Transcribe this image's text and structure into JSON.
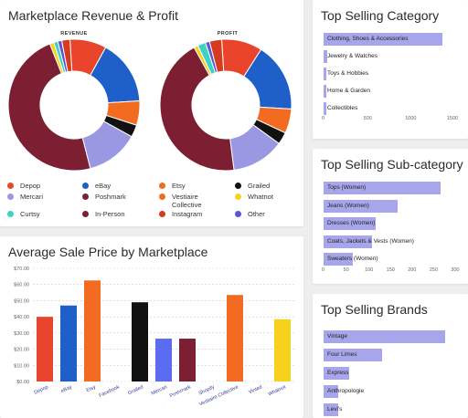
{
  "revenue_profit": {
    "title": "Marketplace Revenue & Profit",
    "revenue_label": "REVENUE",
    "profit_label": "PROFIT",
    "legend": [
      {
        "label": "Depop",
        "color": "#e8452c"
      },
      {
        "label": "eBay",
        "color": "#1f5fc9"
      },
      {
        "label": "Etsy",
        "color": "#f26b21"
      },
      {
        "label": "Grailed",
        "color": "#111111"
      },
      {
        "label": "Mercari",
        "color": "#9a98e3"
      },
      {
        "label": "Poshmark",
        "color": "#7d1f33"
      },
      {
        "label": "Vestiaire Collective",
        "color": "#f26b21"
      },
      {
        "label": "Whatnot",
        "color": "#f7d21c"
      },
      {
        "label": "Curtsy",
        "color": "#3fd1c1"
      },
      {
        "label": "In-Person",
        "color": "#7d1f33"
      },
      {
        "label": "Instagram",
        "color": "#d63a1f"
      },
      {
        "label": "Other",
        "color": "#5b55d6"
      }
    ],
    "revenue_slices": [
      {
        "name": "Depop",
        "value": 9,
        "color": "#e8452c"
      },
      {
        "name": "eBay",
        "value": 16,
        "color": "#1f5fc9"
      },
      {
        "name": "Etsy",
        "value": 6,
        "color": "#f26b21"
      },
      {
        "name": "Grailed",
        "value": 3,
        "color": "#111111"
      },
      {
        "name": "Mercari",
        "value": 13,
        "color": "#9a98e3"
      },
      {
        "name": "Poshmark",
        "value": 48,
        "color": "#7d1f33"
      },
      {
        "name": "Whatnot",
        "value": 1,
        "color": "#f7d21c"
      },
      {
        "name": "Curtsy",
        "value": 1,
        "color": "#3fd1c1"
      },
      {
        "name": "Other",
        "value": 1,
        "color": "#5b55d6"
      },
      {
        "name": "Instagram",
        "value": 2,
        "color": "#d63a1f"
      }
    ],
    "profit_slices": [
      {
        "name": "Depop",
        "value": 10,
        "color": "#e8452c"
      },
      {
        "name": "eBay",
        "value": 17,
        "color": "#1f5fc9"
      },
      {
        "name": "Etsy",
        "value": 6,
        "color": "#f26b21"
      },
      {
        "name": "Grailed",
        "value": 3,
        "color": "#111111"
      },
      {
        "name": "Mercari",
        "value": 13,
        "color": "#9a98e3"
      },
      {
        "name": "Poshmark",
        "value": 44,
        "color": "#7d1f33"
      },
      {
        "name": "Whatnot",
        "value": 1,
        "color": "#f7d21c"
      },
      {
        "name": "Curtsy",
        "value": 2,
        "color": "#3fd1c1"
      },
      {
        "name": "Other",
        "value": 1,
        "color": "#5b55d6"
      },
      {
        "name": "Instagram",
        "value": 3,
        "color": "#d63a1f"
      }
    ]
  },
  "avg_price": {
    "title": "Average Sale Price by Marketplace"
  },
  "chart_data": [
    {
      "type": "bar",
      "title": "Average Sale Price by Marketplace",
      "categories": [
        "Depop",
        "eBay",
        "Etsy",
        "Facebook",
        "Grailed",
        "Mercari",
        "Poshmark",
        "Shopify",
        "Vestiaire Collective",
        "Vinted",
        "Whatnot"
      ],
      "values": [
        40,
        47,
        62.5,
        0,
        49,
        26.5,
        26.5,
        0,
        53.5,
        0,
        38.5
      ],
      "colors": [
        "#e8452c",
        "#1f5fc9",
        "#f26b21",
        "#999999",
        "#111111",
        "#5b6cf0",
        "#7d1f33",
        "#999999",
        "#f26b21",
        "#999999",
        "#f7d21c"
      ],
      "yticks": [
        "$0.00",
        "$10.00",
        "$20.00",
        "$30.00",
        "$40.00",
        "$50.00",
        "$60.00",
        "$70.00"
      ],
      "ylim": [
        0,
        70
      ],
      "grid": true
    },
    {
      "type": "bar",
      "orientation": "horizontal",
      "title": "Top Selling Category",
      "categories": [
        "Clothing, Shoes & Accessories",
        "Jewelry & Watches",
        "Toys & Hobbies",
        "Home & Garden",
        "Collectibles"
      ],
      "values": [
        1430,
        40,
        20,
        15,
        10
      ],
      "xticks": [
        "0",
        "500",
        "1000",
        "1500"
      ],
      "xlim": [
        0,
        1600
      ]
    },
    {
      "type": "bar",
      "orientation": "horizontal",
      "title": "Top Selling Sub-category",
      "categories": [
        "Tops (Women)",
        "Jeans (Women)",
        "Dresses (Women)",
        "Coats, Jackets & Vests (Women)",
        "Sweaters (Women)"
      ],
      "values": [
        272,
        172,
        122,
        112,
        67
      ],
      "xticks": [
        "0",
        "50",
        "100",
        "150",
        "200",
        "250",
        "300"
      ],
      "xlim": [
        0,
        310
      ]
    },
    {
      "type": "bar",
      "orientation": "horizontal",
      "title": "Top Selling Brands",
      "categories": [
        "Vintage",
        "Four Limes",
        "Express",
        "Anthropologie",
        "Levi's"
      ],
      "values": [
        100,
        48,
        21,
        12,
        12
      ],
      "xlim": [
        0,
        110
      ]
    }
  ]
}
